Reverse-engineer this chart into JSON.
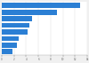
{
  "values": [
    12.9,
    9.0,
    4.9,
    4.5,
    4.3,
    2.8,
    2.5,
    1.8
  ],
  "bar_color": "#2B7FD4",
  "background_color": "#f0f0f0",
  "plot_bg_color": "#ffffff",
  "xlim": [
    0,
    14
  ],
  "figsize": [
    1.0,
    0.71
  ],
  "dpi": 100
}
